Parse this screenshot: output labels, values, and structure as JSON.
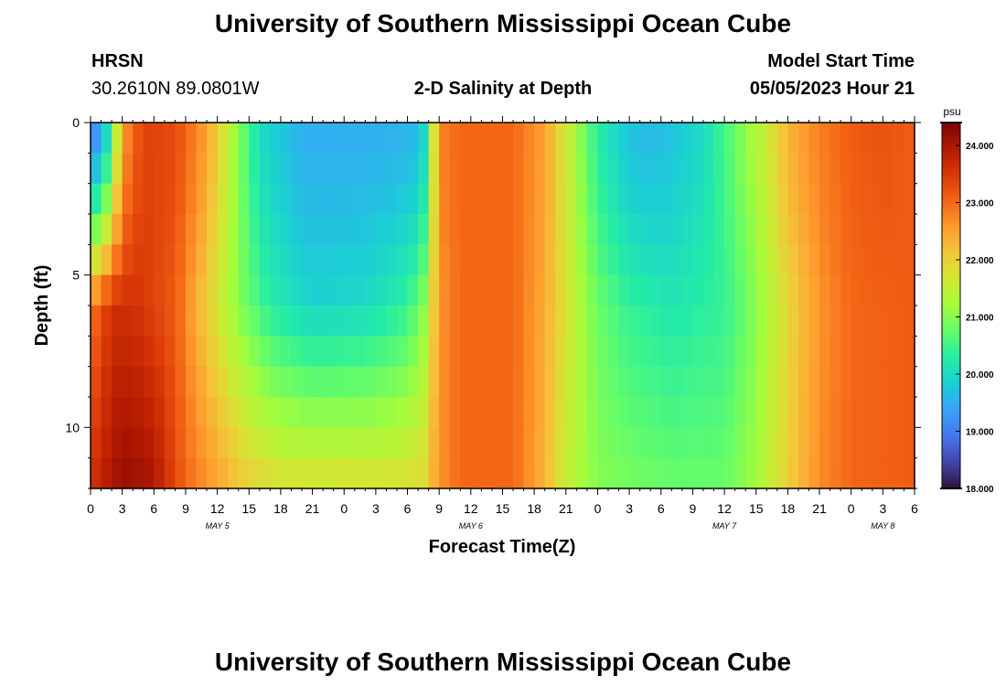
{
  "page": {
    "title_top": "University of Southern Mississippi Ocean Cube",
    "title_bottom": "University of Southern Mississippi Ocean Cube",
    "station": "HRSN",
    "coords": "30.2610N  89.0801W",
    "plot_title": "2-D Salinity at Depth",
    "model_start_label": "Model Start Time",
    "model_start_value": "05/05/2023 Hour 21"
  },
  "chart_data": {
    "type": "heatmap",
    "title": "2-D Salinity at Depth",
    "xlabel": "Forecast Time(Z)",
    "ylabel": "Depth (ft)",
    "x_tick_labels": [
      "0",
      "3",
      "6",
      "9",
      "12",
      "15",
      "18",
      "21",
      "0",
      "3",
      "6",
      "9",
      "12",
      "15",
      "18",
      "21",
      "0",
      "3",
      "6",
      "9",
      "12",
      "15",
      "18",
      "21",
      "0",
      "3",
      "6"
    ],
    "x_tick_hours": [
      0,
      3,
      6,
      9,
      12,
      15,
      18,
      21,
      24,
      27,
      30,
      33,
      36,
      39,
      42,
      45,
      48,
      51,
      54,
      57,
      60,
      63,
      66,
      69,
      72,
      75,
      78
    ],
    "date_labels": [
      {
        "text": "MAY 5",
        "hour": 12
      },
      {
        "text": "MAY 6",
        "hour": 36
      },
      {
        "text": "MAY 7",
        "hour": 60
      },
      {
        "text": "MAY 8",
        "hour": 75
      }
    ],
    "y_tick_labels": [
      "0",
      "5",
      "10"
    ],
    "y_tick_values": [
      0,
      5,
      10
    ],
    "ylim": [
      0,
      12
    ],
    "xlim": [
      0,
      78
    ],
    "colorbar": {
      "unit": "psu",
      "min": 18.0,
      "max": 24.4,
      "tick_labels": [
        "24.000",
        "23.000",
        "22.000",
        "21.000",
        "20.000",
        "19.000",
        "18.000"
      ],
      "tick_values": [
        24,
        23,
        22,
        21,
        20,
        19,
        18
      ],
      "colors": [
        "#30123b",
        "#4145ab",
        "#4675ed",
        "#39a2fc",
        "#1bcfd4",
        "#24eca6",
        "#61fc6c",
        "#a4fc3b",
        "#d1e834",
        "#f3c63a",
        "#fe9b2d",
        "#f36315",
        "#d93807",
        "#b11901",
        "#7a0403"
      ]
    },
    "model": {
      "rows": 12,
      "hours": 78,
      "surface": {
        "t": [
          0,
          1,
          2,
          3,
          5,
          8,
          11,
          14,
          16,
          20,
          28,
          31,
          32,
          32.7,
          33.3,
          35,
          40,
          43,
          46,
          48,
          51,
          53,
          55,
          58,
          61,
          64,
          66,
          69,
          72,
          75,
          78
        ],
        "v": [
          19.0,
          19.3,
          20.5,
          22.5,
          23.4,
          23.3,
          22.5,
          21.0,
          20.0,
          19.5,
          19.5,
          19.6,
          20.2,
          22.3,
          22.8,
          23.0,
          23.0,
          22.5,
          21.2,
          20.3,
          19.7,
          19.6,
          19.7,
          20.0,
          20.8,
          21.6,
          22.3,
          22.8,
          23.1,
          23.2,
          23.1
        ]
      },
      "mid": {
        "t": [
          0,
          2,
          4,
          8,
          11,
          14,
          17,
          21,
          26,
          30,
          31.5,
          33,
          35,
          40,
          43,
          46,
          48,
          51,
          55,
          60,
          63,
          66,
          69,
          72,
          78
        ],
        "v": [
          22.8,
          23.6,
          23.6,
          23.1,
          22.0,
          21.0,
          20.3,
          19.9,
          20.0,
          20.4,
          21.0,
          22.6,
          23.0,
          23.0,
          22.4,
          21.4,
          20.8,
          20.4,
          20.2,
          20.4,
          21.0,
          21.9,
          22.6,
          23.0,
          23.1
        ]
      },
      "bottom": {
        "t": [
          0,
          3,
          6,
          9,
          12,
          15,
          18,
          22,
          26,
          29,
          31.5,
          33,
          35,
          40,
          43,
          45,
          48,
          51,
          55,
          60,
          63,
          66,
          69,
          72,
          78
        ],
        "v": [
          23.6,
          24.2,
          24.0,
          23.0,
          22.5,
          22.0,
          21.8,
          21.8,
          21.8,
          21.8,
          21.9,
          22.6,
          23.0,
          23.0,
          22.3,
          21.5,
          21.0,
          20.9,
          20.8,
          20.8,
          21.2,
          22.0,
          22.7,
          23.0,
          23.1
        ]
      }
    }
  }
}
